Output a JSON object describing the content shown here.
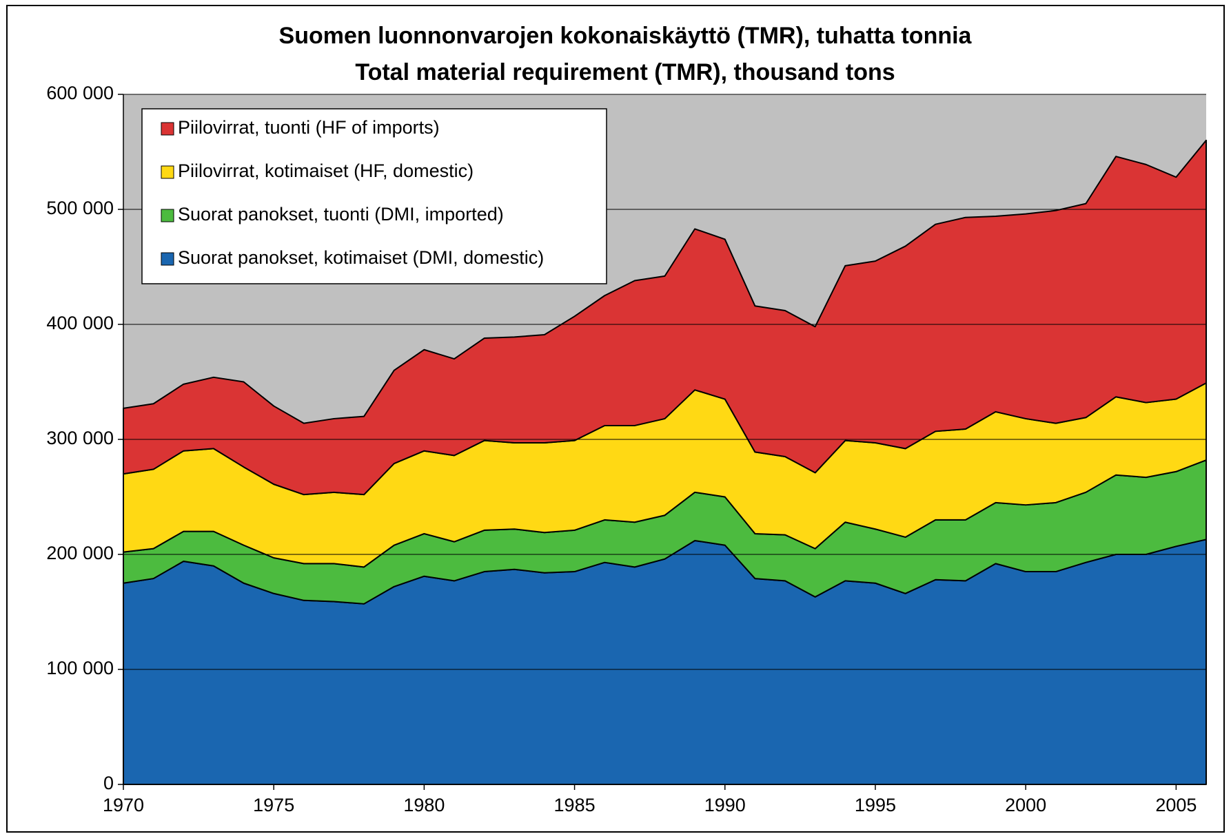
{
  "chart_data": {
    "type": "stacked_area",
    "title": "Suomen luonnonvarojen kokonaiskäyttö (TMR), tuhatta tonnia",
    "subtitle": "Total material requirement (TMR), thousand tons",
    "x": [
      1970,
      1971,
      1972,
      1973,
      1974,
      1975,
      1976,
      1977,
      1978,
      1979,
      1980,
      1981,
      1982,
      1983,
      1984,
      1985,
      1986,
      1987,
      1988,
      1989,
      1990,
      1991,
      1992,
      1993,
      1994,
      1995,
      1996,
      1997,
      1998,
      1999,
      2000,
      2001,
      2002,
      2003,
      2004,
      2005,
      2006
    ],
    "series": [
      {
        "name": "Suorat panokset, kotimaiset (DMI, domestic)",
        "color": "#1a66b0",
        "values": [
          175000,
          179000,
          194000,
          190000,
          175000,
          166000,
          160000,
          159000,
          157000,
          172000,
          181000,
          177000,
          185000,
          187000,
          184000,
          185000,
          193000,
          189000,
          196000,
          212000,
          208000,
          179000,
          177000,
          163000,
          177000,
          175000,
          166000,
          178000,
          177000,
          192000,
          185000,
          185000,
          193000,
          200000,
          200000,
          207000,
          213000
        ]
      },
      {
        "name": "Suorat panokset, tuonti (DMI, imported)",
        "color": "#4cbb3f",
        "values": [
          27000,
          26000,
          26000,
          30000,
          33000,
          31000,
          32000,
          33000,
          32000,
          36000,
          37000,
          34000,
          36000,
          35000,
          35000,
          36000,
          37000,
          39000,
          38000,
          42000,
          42000,
          39000,
          40000,
          42000,
          51000,
          47000,
          49000,
          52000,
          53000,
          53000,
          58000,
          60000,
          61000,
          69000,
          67000,
          65000,
          69000
        ]
      },
      {
        "name": "Piilovirrat, kotimaiset (HF, domestic)",
        "color": "#ffd914",
        "values": [
          68000,
          69000,
          70000,
          72000,
          68000,
          64000,
          60000,
          62000,
          63000,
          71000,
          72000,
          75000,
          78000,
          75000,
          78000,
          78000,
          82000,
          84000,
          84000,
          89000,
          85000,
          71000,
          68000,
          66000,
          71000,
          75000,
          77000,
          77000,
          79000,
          79000,
          75000,
          69000,
          65000,
          68000,
          65000,
          63000,
          67000
        ]
      },
      {
        "name": "Piilovirrat, tuonti (HF of imports)",
        "color": "#da3434",
        "values": [
          57000,
          57000,
          58000,
          62000,
          74000,
          68000,
          62000,
          64000,
          68000,
          81000,
          88000,
          84000,
          89000,
          92000,
          94000,
          108000,
          113000,
          126000,
          124000,
          140000,
          139000,
          127000,
          127000,
          127000,
          152000,
          158000,
          176000,
          180000,
          184000,
          170000,
          178000,
          185000,
          186000,
          209000,
          207000,
          193000,
          211000
        ]
      }
    ],
    "xlim": [
      1970,
      2006
    ],
    "xticks": [
      1970,
      1975,
      1980,
      1985,
      1990,
      1995,
      2000,
      2005
    ],
    "ylim": [
      0,
      600000
    ],
    "yticks": [
      0,
      {
        "value": 100000,
        "label": "100 000"
      },
      {
        "value": 200000,
        "label": "200 000"
      },
      {
        "value": 300000,
        "label": "300 000"
      },
      {
        "value": 400000,
        "label": "400 000"
      },
      {
        "value": 500000,
        "label": "500 000"
      },
      {
        "value": 600000,
        "label": "600 000"
      }
    ],
    "grid": true,
    "plot_background": "#c0c0c0",
    "legend": "upper left"
  }
}
